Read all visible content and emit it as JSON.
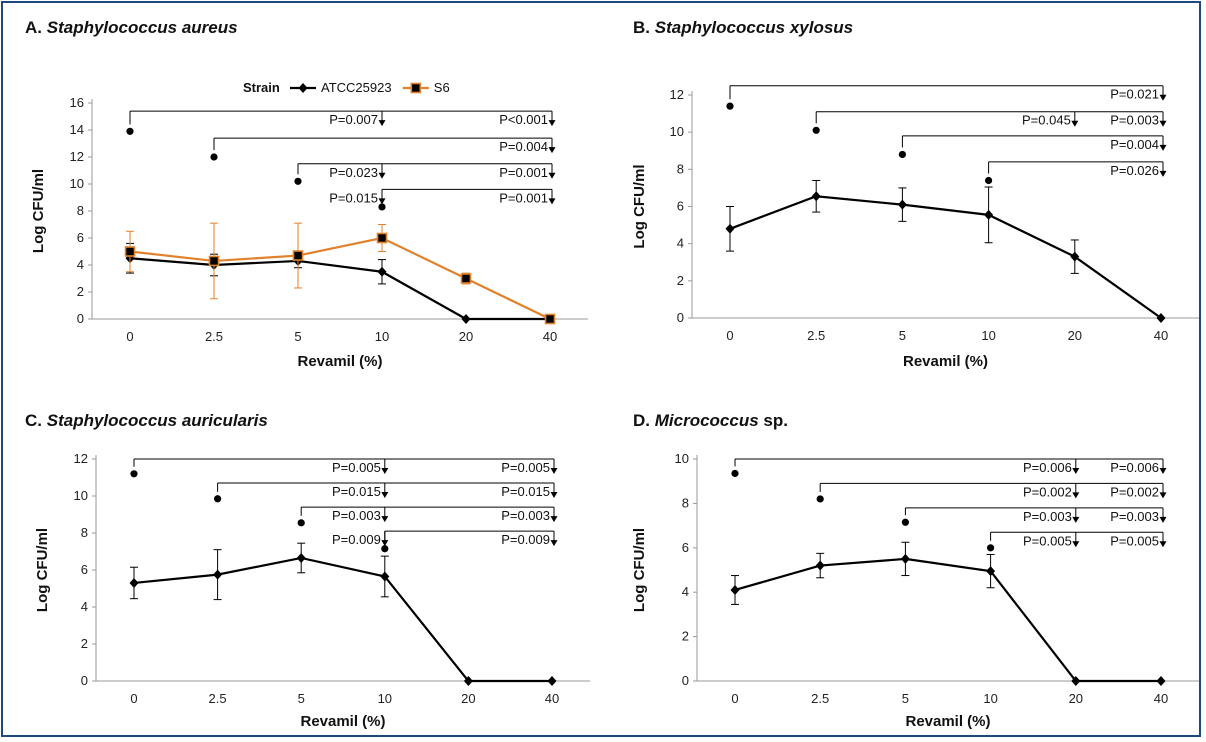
{
  "colors": {
    "series1": "#000000",
    "series2": "#e0822c",
    "frame": "#1d4a7e"
  },
  "chart_data": [
    {
      "type": "line",
      "panel_letter": "A.",
      "title_italic": "Staphylococcus aureus",
      "title_suffix": "",
      "xlabel": "Revamil (%)",
      "ylabel": "Log CFU/ml",
      "categories": [
        "0",
        "2.5",
        "5",
        "10",
        "20",
        "40"
      ],
      "ylim": [
        0,
        16
      ],
      "yticks": [
        0,
        2,
        4,
        6,
        8,
        10,
        12,
        14,
        16
      ],
      "legend": {
        "title": "Strain",
        "position": "top"
      },
      "series": [
        {
          "name": "ATCC25923",
          "color": "#000000",
          "marker": "diamond",
          "values": [
            4.5,
            4.0,
            4.3,
            3.5,
            0,
            0
          ],
          "err": [
            1.1,
            0.8,
            0.5,
            0.9,
            0,
            0
          ]
        },
        {
          "name": "S6",
          "color": "#e0822c",
          "marker": "square",
          "values": [
            5.0,
            4.3,
            4.7,
            6.0,
            3.0,
            0
          ],
          "err": [
            1.5,
            2.8,
            2.4,
            1.0,
            0.4,
            0
          ]
        }
      ],
      "brackets": [
        {
          "from": 0,
          "dot_y": 13.9,
          "line_y": 15.4,
          "labels": [
            {
              "to": 3,
              "text": "P=0.007"
            },
            {
              "to": 5,
              "text": "P<0.001"
            }
          ]
        },
        {
          "from": 1,
          "dot_y": 12.0,
          "line_y": 13.4,
          "labels": [
            {
              "to": 5,
              "text": "P=0.004"
            }
          ]
        },
        {
          "from": 2,
          "dot_y": 10.2,
          "line_y": 11.5,
          "labels": [
            {
              "to": 3,
              "text": "P=0.023"
            },
            {
              "to": 5,
              "text": "P=0.001"
            }
          ]
        },
        {
          "from": 3,
          "dot_y": 8.3,
          "line_y": 9.6,
          "labels": [
            {
              "to": 3,
              "text": "P=0.015"
            },
            {
              "to": 5,
              "text": "P=0.001"
            }
          ]
        }
      ]
    },
    {
      "type": "line",
      "panel_letter": "B.",
      "title_italic": "Staphylococcus xylosus",
      "title_suffix": "",
      "xlabel": "Revamil (%)",
      "ylabel": "Log CFU/ml",
      "categories": [
        "0",
        "2.5",
        "5",
        "10",
        "20",
        "40"
      ],
      "ylim": [
        0,
        12
      ],
      "yticks": [
        0,
        2,
        4,
        6,
        8,
        10,
        12
      ],
      "series": [
        {
          "name": "",
          "color": "#000000",
          "marker": "diamond",
          "values": [
            4.8,
            6.55,
            6.1,
            5.55,
            3.3,
            0
          ],
          "err": [
            1.2,
            0.85,
            0.9,
            1.5,
            0.9,
            0
          ]
        }
      ],
      "brackets": [
        {
          "from": 0,
          "dot_y": 11.4,
          "line_y": 12.5,
          "labels": [
            {
              "to": 5,
              "text": "P=0.021"
            }
          ]
        },
        {
          "from": 1,
          "dot_y": 10.1,
          "line_y": 11.1,
          "labels": [
            {
              "to": 4,
              "text": "P=0.045"
            },
            {
              "to": 5,
              "text": "P=0.003"
            }
          ]
        },
        {
          "from": 2,
          "dot_y": 8.8,
          "line_y": 9.8,
          "labels": [
            {
              "to": 5,
              "text": "P=0.004"
            }
          ]
        },
        {
          "from": 3,
          "dot_y": 7.4,
          "line_y": 8.4,
          "labels": [
            {
              "to": 5,
              "text": "P=0.026"
            }
          ]
        }
      ]
    },
    {
      "type": "line",
      "panel_letter": "C.",
      "title_italic": "Staphylococcus auricularis",
      "title_suffix": "",
      "xlabel": "Revamil (%)",
      "ylabel": "Log CFU/ml",
      "categories": [
        "0",
        "2.5",
        "5",
        "10",
        "20",
        "40"
      ],
      "ylim": [
        0,
        12
      ],
      "yticks": [
        0,
        2,
        4,
        6,
        8,
        10,
        12
      ],
      "series": [
        {
          "name": "",
          "color": "#000000",
          "marker": "diamond",
          "values": [
            5.3,
            5.75,
            6.65,
            5.65,
            0,
            0
          ],
          "err": [
            0.85,
            1.35,
            0.8,
            1.1,
            0,
            0
          ]
        }
      ],
      "brackets": [
        {
          "from": 0,
          "dot_y": 11.2,
          "line_y": 12.0,
          "labels": [
            {
              "to": 3,
              "text": "P=0.005"
            },
            {
              "to": 5,
              "text": "P=0.005"
            }
          ]
        },
        {
          "from": 1,
          "dot_y": 9.85,
          "line_y": 10.7,
          "labels": [
            {
              "to": 3,
              "text": "P=0.015"
            },
            {
              "to": 5,
              "text": "P=0.015"
            }
          ]
        },
        {
          "from": 2,
          "dot_y": 8.55,
          "line_y": 9.4,
          "labels": [
            {
              "to": 3,
              "text": "P=0.003"
            },
            {
              "to": 5,
              "text": "P=0.003"
            }
          ]
        },
        {
          "from": 3,
          "dot_y": 7.15,
          "line_y": 8.1,
          "labels": [
            {
              "to": 3,
              "text": "P=0.009"
            },
            {
              "to": 5,
              "text": "P=0.009"
            }
          ]
        }
      ]
    },
    {
      "type": "line",
      "panel_letter": "D.",
      "title_italic": "Micrococcus",
      "title_suffix": " sp.",
      "xlabel": "Revamil (%)",
      "ylabel": "Log CFU/ml",
      "categories": [
        "0",
        "2.5",
        "5",
        "10",
        "20",
        "40"
      ],
      "ylim": [
        0,
        10
      ],
      "yticks": [
        0,
        2,
        4,
        6,
        8,
        10
      ],
      "series": [
        {
          "name": "",
          "color": "#000000",
          "marker": "diamond",
          "values": [
            4.1,
            5.2,
            5.5,
            4.95,
            0,
            0
          ],
          "err": [
            0.65,
            0.55,
            0.75,
            0.75,
            0,
            0
          ]
        }
      ],
      "brackets": [
        {
          "from": 0,
          "dot_y": 9.35,
          "line_y": 10.0,
          "labels": [
            {
              "to": 4,
              "text": "P=0.006"
            },
            {
              "to": 5,
              "text": "P=0.006"
            }
          ]
        },
        {
          "from": 1,
          "dot_y": 8.2,
          "line_y": 8.9,
          "labels": [
            {
              "to": 4,
              "text": "P=0.002"
            },
            {
              "to": 5,
              "text": "P=0.002"
            }
          ]
        },
        {
          "from": 2,
          "dot_y": 7.15,
          "line_y": 7.8,
          "labels": [
            {
              "to": 4,
              "text": "P=0.003"
            },
            {
              "to": 5,
              "text": "P=0.003"
            }
          ]
        },
        {
          "from": 3,
          "dot_y": 6.0,
          "line_y": 6.7,
          "labels": [
            {
              "to": 4,
              "text": "P=0.005"
            },
            {
              "to": 5,
              "text": "P=0.005"
            }
          ]
        }
      ]
    }
  ]
}
